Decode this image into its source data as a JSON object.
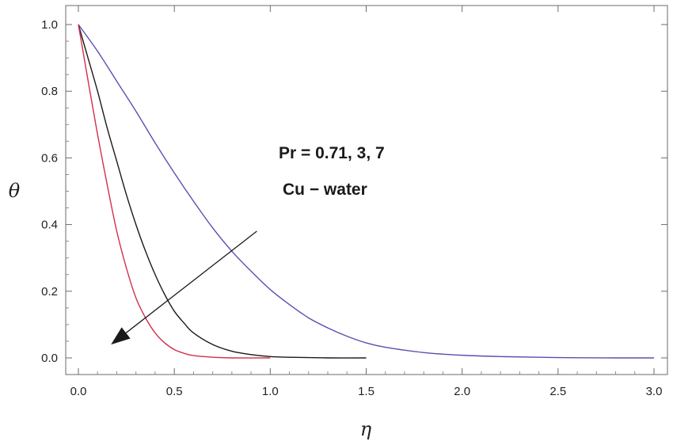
{
  "chart_data": {
    "type": "line",
    "xlabel": "η",
    "ylabel": "θ",
    "xlim": [
      0,
      3.0
    ],
    "ylim": [
      -0.05,
      1.05
    ],
    "x_ticks": [
      "0.0",
      "0.5",
      "1.0",
      "1.5",
      "2.0",
      "2.5",
      "3.0"
    ],
    "y_ticks": [
      "0.0",
      "0.2",
      "0.4",
      "0.6",
      "0.8",
      "1.0"
    ],
    "grid": false,
    "annotations": [
      "Pr = 0.71, 3, 7",
      "Cu − water"
    ],
    "arrow": {
      "from": [
        0.93,
        0.38
      ],
      "to": [
        0.17,
        0.04
      ]
    },
    "series": [
      {
        "color": "#5b4fb0",
        "x": [
          0,
          0.1,
          0.2,
          0.3,
          0.4,
          0.5,
          0.6,
          0.7,
          0.8,
          0.9,
          1.0,
          1.1,
          1.2,
          1.3,
          1.4,
          1.5,
          1.6,
          1.8,
          2.0,
          2.2,
          2.5,
          2.8,
          3.0
        ],
        "values": [
          1.0,
          0.92,
          0.83,
          0.74,
          0.645,
          0.555,
          0.47,
          0.39,
          0.32,
          0.26,
          0.205,
          0.16,
          0.12,
          0.09,
          0.065,
          0.045,
          0.032,
          0.016,
          0.008,
          0.004,
          0.001,
          0.0,
          0.0
        ]
      },
      {
        "color": "#1a1a1a",
        "x": [
          0,
          0.05,
          0.1,
          0.15,
          0.2,
          0.25,
          0.3,
          0.35,
          0.4,
          0.45,
          0.5,
          0.55,
          0.6,
          0.7,
          0.8,
          0.9,
          1.0,
          1.1,
          1.2,
          1.3,
          1.5
        ],
        "values": [
          1.0,
          0.9,
          0.8,
          0.69,
          0.59,
          0.49,
          0.4,
          0.32,
          0.25,
          0.19,
          0.14,
          0.105,
          0.075,
          0.04,
          0.02,
          0.01,
          0.004,
          0.002,
          0.001,
          0.0,
          0.0
        ]
      },
      {
        "color": "#d0304a",
        "x": [
          0,
          0.03,
          0.06,
          0.1,
          0.15,
          0.2,
          0.25,
          0.3,
          0.35,
          0.4,
          0.45,
          0.5,
          0.55,
          0.6,
          0.7,
          0.8,
          1.0
        ],
        "values": [
          1.0,
          0.9,
          0.8,
          0.67,
          0.52,
          0.38,
          0.27,
          0.18,
          0.12,
          0.075,
          0.045,
          0.025,
          0.014,
          0.007,
          0.002,
          0.0,
          0.0
        ]
      }
    ]
  }
}
